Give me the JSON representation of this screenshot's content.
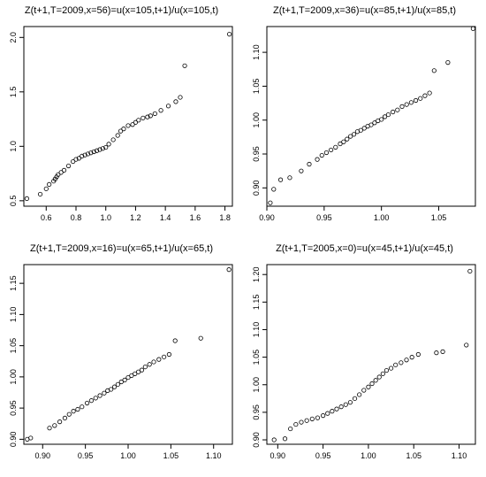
{
  "chart_data": [
    {
      "type": "scatter",
      "title": "Z(t+1,T=2009,x=56)=u(x=105,t+1)/u(x=105,t)",
      "xlabel": "",
      "ylabel": "",
      "xlim": [
        0.45,
        1.85
      ],
      "ylim": [
        0.45,
        2.1
      ],
      "xticks": [
        0.6,
        0.8,
        1.0,
        1.2,
        1.4,
        1.6,
        1.8
      ],
      "xtick_labels": [
        "0.6",
        "0.8",
        "1.0",
        "1.2",
        "1.4",
        "1.6",
        "1.8"
      ],
      "yticks": [
        0.5,
        1.0,
        1.5,
        2.0
      ],
      "ytick_labels": [
        "0.5",
        "1.0",
        "1.5",
        "2.0"
      ],
      "grid": false,
      "x": [
        0.47,
        0.56,
        0.6,
        0.62,
        0.65,
        0.66,
        0.67,
        0.68,
        0.7,
        0.72,
        0.75,
        0.78,
        0.8,
        0.82,
        0.84,
        0.86,
        0.88,
        0.9,
        0.92,
        0.94,
        0.96,
        0.98,
        1.0,
        1.02,
        1.05,
        1.08,
        1.1,
        1.12,
        1.15,
        1.18,
        1.2,
        1.22,
        1.25,
        1.28,
        1.3,
        1.33,
        1.37,
        1.42,
        1.47,
        1.5,
        1.53,
        1.83
      ],
      "y": [
        0.52,
        0.56,
        0.61,
        0.65,
        0.68,
        0.7,
        0.72,
        0.74,
        0.76,
        0.78,
        0.82,
        0.86,
        0.88,
        0.89,
        0.91,
        0.92,
        0.93,
        0.94,
        0.95,
        0.96,
        0.97,
        0.98,
        0.99,
        1.02,
        1.06,
        1.1,
        1.14,
        1.16,
        1.19,
        1.2,
        1.22,
        1.24,
        1.26,
        1.27,
        1.28,
        1.3,
        1.33,
        1.37,
        1.41,
        1.45,
        1.74,
        2.03
      ]
    },
    {
      "type": "scatter",
      "title": "Z(t+1,T=2009,x=36)=u(x=85,t+1)/u(x=85,t)",
      "xlabel": "",
      "ylabel": "",
      "xlim": [
        0.9,
        1.082
      ],
      "ylim": [
        0.873,
        1.138
      ],
      "xticks": [
        0.9,
        0.95,
        1.0,
        1.05
      ],
      "xtick_labels": [
        "0.90",
        "0.95",
        "1.00",
        "1.05"
      ],
      "yticks": [
        0.9,
        0.95,
        1.0,
        1.05,
        1.1
      ],
      "ytick_labels": [
        "0.90",
        "0.95",
        "1.00",
        "1.05",
        "1.10"
      ],
      "grid": false,
      "x": [
        0.903,
        0.906,
        0.912,
        0.92,
        0.93,
        0.937,
        0.944,
        0.948,
        0.952,
        0.956,
        0.96,
        0.964,
        0.967,
        0.97,
        0.973,
        0.976,
        0.979,
        0.982,
        0.985,
        0.988,
        0.991,
        0.994,
        0.997,
        1.0,
        1.003,
        1.006,
        1.01,
        1.014,
        1.018,
        1.022,
        1.026,
        1.03,
        1.034,
        1.038,
        1.042,
        1.046,
        1.058,
        1.08
      ],
      "y": [
        0.878,
        0.898,
        0.912,
        0.915,
        0.925,
        0.935,
        0.942,
        0.948,
        0.952,
        0.956,
        0.96,
        0.965,
        0.968,
        0.972,
        0.976,
        0.979,
        0.983,
        0.985,
        0.988,
        0.991,
        0.993,
        0.996,
        0.999,
        1.001,
        1.005,
        1.008,
        1.012,
        1.015,
        1.02,
        1.023,
        1.026,
        1.029,
        1.032,
        1.036,
        1.04,
        1.073,
        1.085,
        1.135
      ]
    },
    {
      "type": "scatter",
      "title": "Z(t+1,T=2009,x=16)=u(x=65,t+1)/u(x=65,t)",
      "xlabel": "",
      "ylabel": "",
      "xlim": [
        0.878,
        1.122
      ],
      "ylim": [
        0.892,
        1.18
      ],
      "xticks": [
        0.9,
        0.95,
        1.0,
        1.05,
        1.1
      ],
      "xtick_labels": [
        "0.90",
        "0.95",
        "1.00",
        "1.05",
        "1.10"
      ],
      "yticks": [
        0.9,
        0.95,
        1.0,
        1.05,
        1.1,
        1.15
      ],
      "ytick_labels": [
        "0.90",
        "0.95",
        "1.00",
        "1.05",
        "1.10",
        "1.15"
      ],
      "grid": false,
      "x": [
        0.882,
        0.886,
        0.908,
        0.914,
        0.92,
        0.926,
        0.931,
        0.936,
        0.941,
        0.946,
        0.952,
        0.957,
        0.962,
        0.967,
        0.972,
        0.976,
        0.98,
        0.984,
        0.988,
        0.992,
        0.996,
        1.0,
        1.004,
        1.008,
        1.012,
        1.016,
        1.02,
        1.025,
        1.03,
        1.036,
        1.042,
        1.048,
        1.055,
        1.085,
        1.118
      ],
      "y": [
        0.9,
        0.902,
        0.918,
        0.922,
        0.928,
        0.934,
        0.94,
        0.945,
        0.948,
        0.952,
        0.958,
        0.962,
        0.966,
        0.97,
        0.974,
        0.978,
        0.98,
        0.984,
        0.988,
        0.992,
        0.995,
        0.999,
        1.002,
        1.005,
        1.008,
        1.011,
        1.016,
        1.02,
        1.024,
        1.028,
        1.032,
        1.036,
        1.058,
        1.062,
        1.172
      ]
    },
    {
      "type": "scatter",
      "title": "Z(t+1,T=2005,x=0)=u(x=45,t+1)/u(x=45,t)",
      "xlabel": "",
      "ylabel": "",
      "xlim": [
        0.888,
        1.118
      ],
      "ylim": [
        0.892,
        1.218
      ],
      "xticks": [
        0.9,
        0.95,
        1.0,
        1.05,
        1.1
      ],
      "xtick_labels": [
        "0.90",
        "0.95",
        "1.00",
        "1.05",
        "1.10"
      ],
      "yticks": [
        0.9,
        0.95,
        1.0,
        1.05,
        1.1,
        1.15,
        1.2
      ],
      "ytick_labels": [
        "0.90",
        "0.95",
        "1.00",
        "1.05",
        "1.10",
        "1.15",
        "1.20"
      ],
      "grid": false,
      "x": [
        0.896,
        0.908,
        0.914,
        0.92,
        0.926,
        0.932,
        0.938,
        0.944,
        0.95,
        0.955,
        0.96,
        0.965,
        0.97,
        0.975,
        0.98,
        0.985,
        0.99,
        0.995,
        1.0,
        1.004,
        1.008,
        1.012,
        1.016,
        1.02,
        1.025,
        1.03,
        1.036,
        1.042,
        1.048,
        1.055,
        1.075,
        1.082,
        1.108,
        1.112
      ],
      "y": [
        0.9,
        0.902,
        0.92,
        0.928,
        0.932,
        0.935,
        0.938,
        0.94,
        0.944,
        0.948,
        0.952,
        0.956,
        0.96,
        0.964,
        0.968,
        0.975,
        0.982,
        0.99,
        0.996,
        1.002,
        1.008,
        1.014,
        1.02,
        1.026,
        1.03,
        1.036,
        1.04,
        1.045,
        1.05,
        1.055,
        1.058,
        1.06,
        1.072,
        1.206
      ]
    }
  ]
}
